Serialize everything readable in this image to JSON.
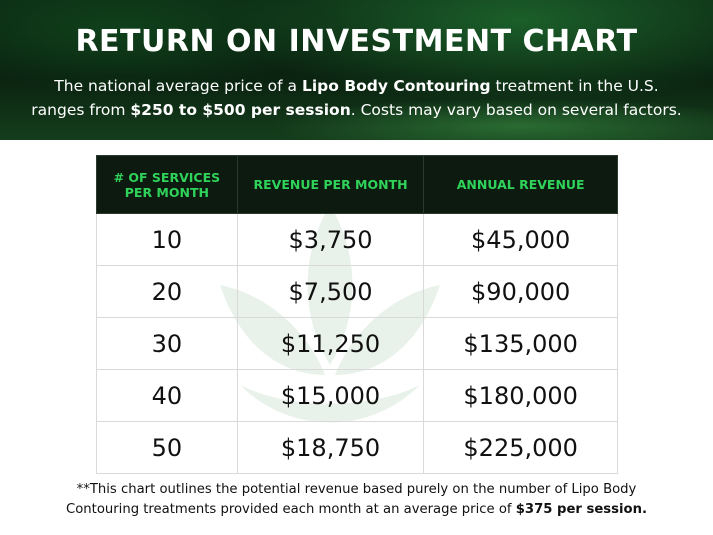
{
  "header": {
    "title": "RETURN ON INVESTMENT CHART",
    "intro_1": "The national average price of a ",
    "intro_treatment": "Lipo Body Contouring",
    "intro_2": " treatment in the U.S.",
    "intro_3": "ranges from ",
    "intro_range": "$250 to $500 per session",
    "intro_4": ". Costs may vary based on several factors."
  },
  "table": {
    "columns": [
      "# OF SERVICES PER MONTH",
      "REVENUE PER MONTH",
      "ANNUAL REVENUE"
    ],
    "rows": [
      {
        "services": "10",
        "monthly": "$3,750",
        "annual": "$45,000"
      },
      {
        "services": "20",
        "monthly": "$7,500",
        "annual": "$90,000"
      },
      {
        "services": "30",
        "monthly": "$11,250",
        "annual": "$135,000"
      },
      {
        "services": "40",
        "monthly": "$15,000",
        "annual": "$180,000"
      },
      {
        "services": "50",
        "monthly": "$18,750",
        "annual": "$225,000"
      }
    ]
  },
  "footnote": {
    "text_1": "**This chart outlines the potential revenue based purely on the number of Lipo Body",
    "text_2": "Contouring treatments provided each month at an average price of ",
    "price": "$375 per session."
  },
  "colors": {
    "header_bg": "#0c2a14",
    "table_header_bg": "#0d1a0f",
    "accent_green": "#2fd35a"
  },
  "icons": {
    "watermark": "leaf-logo-icon"
  }
}
